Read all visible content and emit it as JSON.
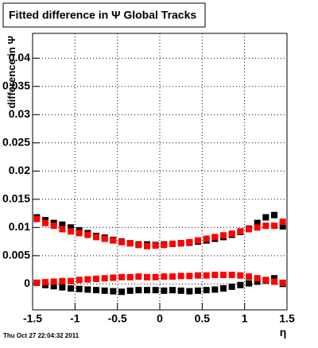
{
  "chart_data": {
    "type": "scatter",
    "title": "Fitted difference in  Ψ   Global Tracks",
    "y_label": "difference in Ψ",
    "x_label": "η",
    "timestamp": "Thu Oct 27 22:04:32 2011",
    "x": [
      -1.45,
      -1.35,
      -1.25,
      -1.15,
      -1.05,
      -0.95,
      -0.85,
      -0.75,
      -0.65,
      -0.55,
      -0.45,
      -0.35,
      -0.25,
      -0.15,
      -0.05,
      0.05,
      0.15,
      0.25,
      0.35,
      0.45,
      0.55,
      0.65,
      0.75,
      0.85,
      0.95,
      1.05,
      1.15,
      1.25,
      1.35,
      1.45
    ],
    "series": [
      {
        "color": "#000000",
        "values": [
          0.0118,
          0.0113,
          0.0108,
          0.0105,
          0.01,
          0.0095,
          0.009,
          0.0085,
          0.0082,
          0.0078,
          0.0075,
          0.0072,
          0.007,
          0.007,
          0.0069,
          0.007,
          0.0071,
          0.0072,
          0.0073,
          0.0075,
          0.0077,
          0.008,
          0.0083,
          0.0087,
          0.0092,
          0.0098,
          0.0108,
          0.0118,
          0.0122,
          0.0102
        ]
      },
      {
        "color": "#ff0000",
        "values": [
          0.0115,
          0.0108,
          0.0103,
          0.0097,
          0.0093,
          0.009,
          0.0087,
          0.0083,
          0.008,
          0.0077,
          0.0074,
          0.0072,
          0.0069,
          0.0067,
          0.0068,
          0.0069,
          0.0071,
          0.0072,
          0.0074,
          0.0077,
          0.008,
          0.0083,
          0.0086,
          0.0089,
          0.0093,
          0.0097,
          0.01,
          0.0103,
          0.0103,
          0.011
        ]
      },
      {
        "color": "#000000",
        "values": [
          0.0002,
          -0.0002,
          -0.0004,
          -0.0006,
          -0.0008,
          -0.0009,
          -0.001,
          -0.0011,
          -0.0012,
          -0.0013,
          -0.0014,
          -0.0012,
          -0.0011,
          -0.0011,
          -0.0011,
          -0.0012,
          -0.0011,
          -0.0012,
          -0.0013,
          -0.0012,
          -0.0011,
          -0.001,
          -0.0008,
          -0.0005,
          -0.0002,
          0.0001,
          0.0004,
          0.0006,
          0.001,
          0.0
        ]
      },
      {
        "color": "#ff0000",
        "values": [
          0.0002,
          0.0003,
          0.0004,
          0.0005,
          0.0005,
          0.0007,
          0.0008,
          0.0009,
          0.001,
          0.0011,
          0.0012,
          0.0012,
          0.0013,
          0.0012,
          0.0012,
          0.0013,
          0.0013,
          0.0014,
          0.0014,
          0.0015,
          0.0015,
          0.0016,
          0.0016,
          0.0016,
          0.0015,
          0.0013,
          0.001,
          0.0007,
          0.0004,
          0.0002
        ]
      }
    ],
    "xlim": [
      -1.5,
      1.5
    ],
    "xticks": [
      -1.5,
      -1,
      -0.5,
      0,
      0.5,
      1,
      1.5
    ],
    "ylim": [
      -0.0046,
      0.0444
    ],
    "yticks": [
      0,
      0.005,
      0.01,
      0.015,
      0.02,
      0.025,
      0.03,
      0.035,
      0.04
    ],
    "grid": true
  }
}
